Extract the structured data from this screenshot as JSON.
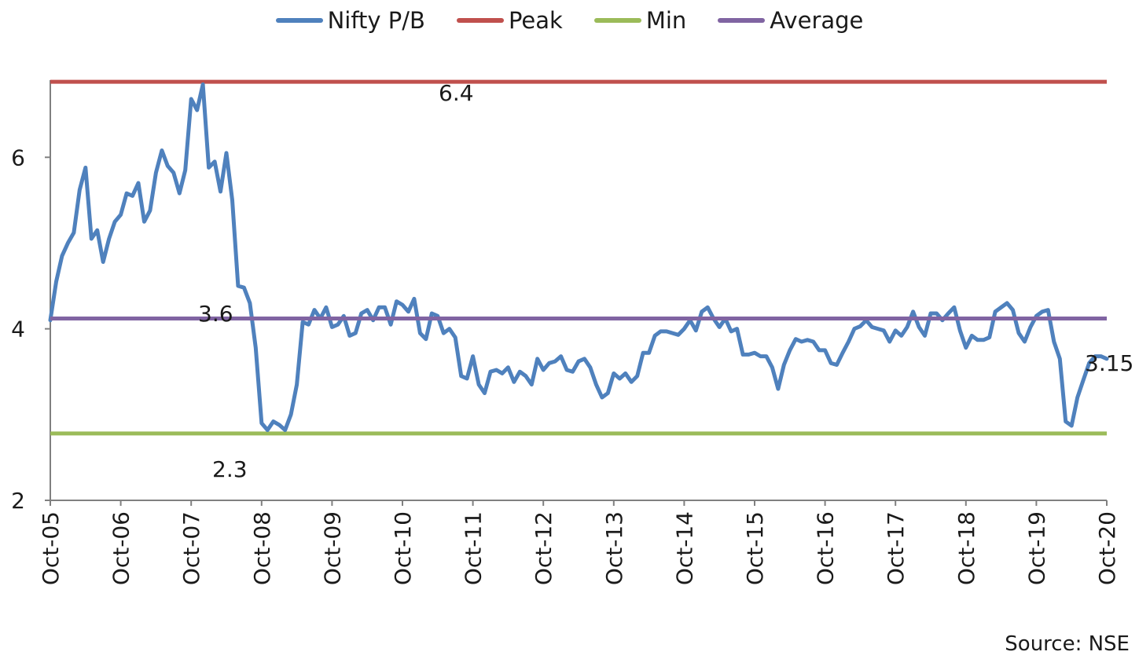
{
  "chart_data": {
    "type": "line",
    "title": "",
    "xlabel": "",
    "ylabel": "",
    "source": "Source: NSE",
    "ylim": [
      2,
      6.9
    ],
    "yticks": [
      2,
      4,
      6
    ],
    "x_ticks": [
      "Oct-05",
      "Oct-06",
      "Oct-07",
      "Oct-08",
      "Oct-09",
      "Oct-10",
      "Oct-11",
      "Oct-12",
      "Oct-13",
      "Oct-14",
      "Oct-15",
      "Oct-16",
      "Oct-17",
      "Oct-18",
      "Oct-19",
      "Oct-20"
    ],
    "legend_position": "top",
    "grid": false,
    "series": [
      {
        "name": "Nifty P/B",
        "color": "#4f81bd",
        "values": [
          4.1,
          4.55,
          4.85,
          5.0,
          5.12,
          5.62,
          5.88,
          5.05,
          5.15,
          4.78,
          5.05,
          5.25,
          5.33,
          5.58,
          5.55,
          5.7,
          5.25,
          5.38,
          5.82,
          6.08,
          5.9,
          5.82,
          5.58,
          5.85,
          6.68,
          6.55,
          6.85,
          5.88,
          5.95,
          5.6,
          6.05,
          5.5,
          4.5,
          4.48,
          4.3,
          3.78,
          2.9,
          2.82,
          2.92,
          2.88,
          2.82,
          3.0,
          3.35,
          4.08,
          4.05,
          4.22,
          4.12,
          4.25,
          4.02,
          4.05,
          4.15,
          3.92,
          3.95,
          4.18,
          4.22,
          4.1,
          4.25,
          4.25,
          4.05,
          4.32,
          4.28,
          4.2,
          4.35,
          3.95,
          3.88,
          4.18,
          4.15,
          3.95,
          4.0,
          3.9,
          3.45,
          3.42,
          3.68,
          3.35,
          3.25,
          3.5,
          3.52,
          3.48,
          3.55,
          3.38,
          3.5,
          3.45,
          3.35,
          3.65,
          3.52,
          3.6,
          3.62,
          3.68,
          3.52,
          3.5,
          3.62,
          3.65,
          3.55,
          3.35,
          3.2,
          3.25,
          3.48,
          3.42,
          3.48,
          3.38,
          3.45,
          3.72,
          3.72,
          3.92,
          3.97,
          3.97,
          3.95,
          3.93,
          4.0,
          4.1,
          3.98,
          4.2,
          4.25,
          4.12,
          4.02,
          4.12,
          3.97,
          4.0,
          3.7,
          3.7,
          3.72,
          3.68,
          3.68,
          3.55,
          3.3,
          3.58,
          3.75,
          3.88,
          3.85,
          3.87,
          3.85,
          3.75,
          3.75,
          3.6,
          3.58,
          3.72,
          3.85,
          4.0,
          4.03,
          4.1,
          4.02,
          4.0,
          3.98,
          3.85,
          3.98,
          3.92,
          4.02,
          4.2,
          4.02,
          3.92,
          4.18,
          4.18,
          4.1,
          4.18,
          4.25,
          3.98,
          3.78,
          3.92,
          3.87,
          3.87,
          3.9,
          4.2,
          4.25,
          4.3,
          4.22,
          3.95,
          3.85,
          4.02,
          4.15,
          4.2,
          4.22,
          3.85,
          3.65,
          2.92,
          2.87,
          3.2,
          3.4,
          3.6,
          3.68,
          3.68,
          3.65
        ]
      },
      {
        "name": "Peak",
        "color": "#c0504d",
        "values": [
          6.88
        ]
      },
      {
        "name": "Min",
        "color": "#9bbb59",
        "values": [
          2.78
        ]
      },
      {
        "name": "Average",
        "color": "#8064a2",
        "values": [
          4.12
        ]
      }
    ],
    "annotations": [
      {
        "text": "6.4"
      },
      {
        "text": "3.6"
      },
      {
        "text": "2.3"
      },
      {
        "text": "3.15"
      }
    ]
  }
}
